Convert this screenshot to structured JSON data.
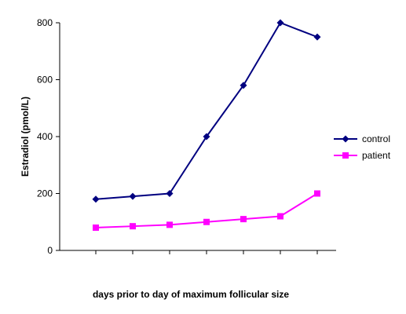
{
  "chart_data": {
    "type": "line",
    "title": "",
    "xlabel": "days prior to day of maximum follicular size",
    "ylabel": "Estradiol (pmol/L)",
    "ylim": [
      0,
      800
    ],
    "yticks": [
      0,
      200,
      400,
      600,
      800
    ],
    "x_categories": [
      "",
      "",
      "",
      "",
      "",
      "",
      ""
    ],
    "grid": false,
    "legend_position": "right",
    "series": [
      {
        "name": "control",
        "color": "#000080",
        "marker": "diamond",
        "values": [
          180,
          190,
          200,
          400,
          580,
          800,
          750
        ]
      },
      {
        "name": "patient",
        "color": "#ff00ff",
        "marker": "square",
        "values": [
          80,
          85,
          90,
          100,
          110,
          120,
          200
        ]
      }
    ]
  }
}
